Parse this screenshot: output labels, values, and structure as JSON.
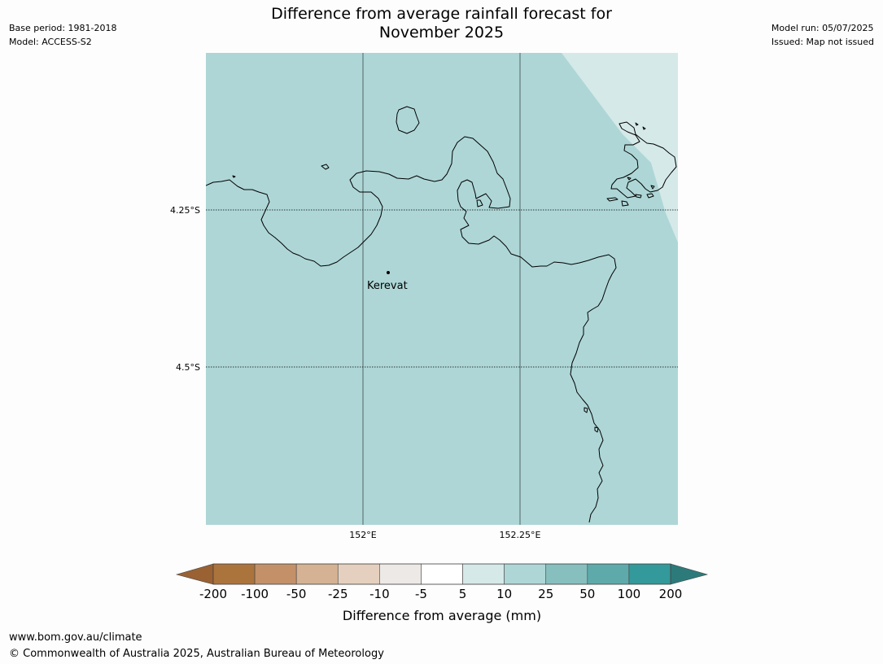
{
  "header": {
    "title_line1": "Difference from average rainfall forecast for",
    "title_line2": "November 2025",
    "base_period": "Base period: 1981-2018",
    "model": "Model: ACCESS-S2",
    "model_run": "Model run: 05/07/2025",
    "issued": "Issued: Map not issued"
  },
  "map": {
    "lat_ticks": [
      "4.25°S",
      "4.5°S"
    ],
    "lon_ticks": [
      "152°E",
      "152.25°E"
    ],
    "place_label": "Kerevat",
    "fill_main": "#aed6d6",
    "fill_light": "#d5e9e9",
    "coast_color": "#000000"
  },
  "legend": {
    "title": "Difference from average (mm)",
    "labels": [
      "-200",
      "-100",
      "-50",
      "-25",
      "-10",
      "-5",
      "5",
      "10",
      "25",
      "50",
      "100",
      "200"
    ],
    "low_extend_color": "#9a6133",
    "high_extend_color": "#2c7b7a",
    "colors": [
      "#ac743d",
      "#c39068",
      "#d4b293",
      "#e5d0bf",
      "#ede9e6",
      "#ffffff",
      "#d5e9e9",
      "#aed6d6",
      "#86bfbe",
      "#5eaaab",
      "#33999a"
    ]
  },
  "footer": {
    "url": "www.bom.gov.au/climate",
    "copyright": "© Commonwealth of Australia 2025, Australian Bureau of Meteorology"
  }
}
